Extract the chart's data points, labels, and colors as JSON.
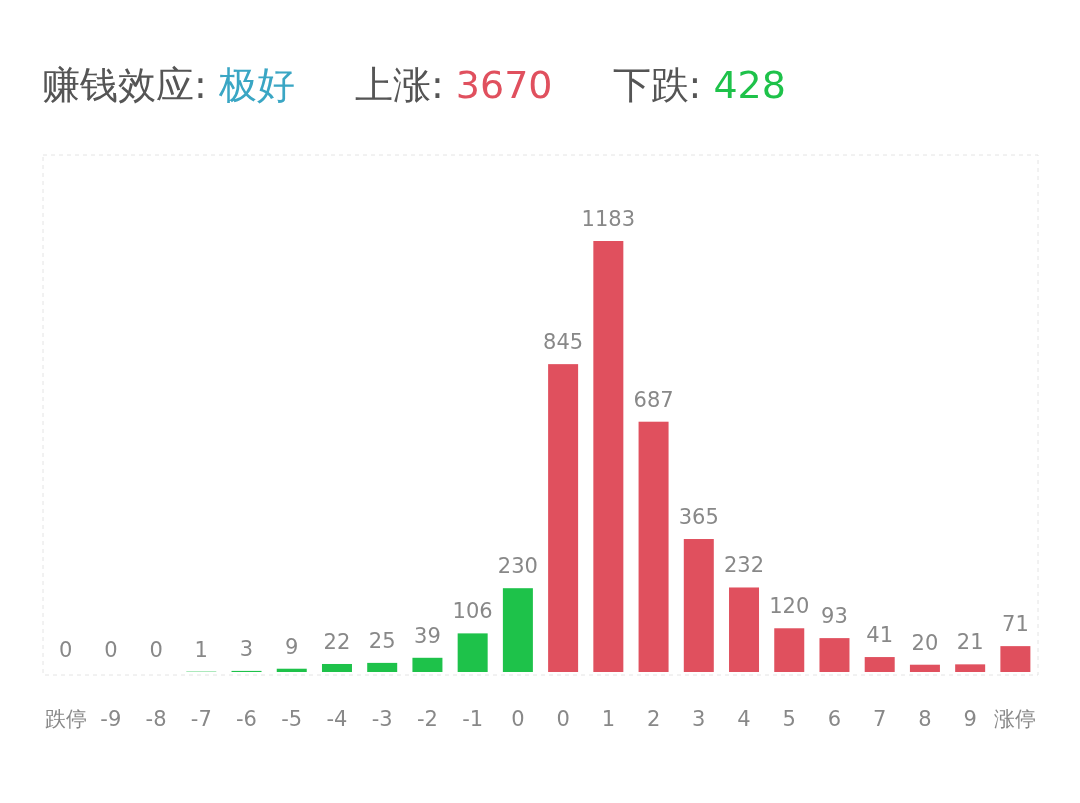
{
  "chart_data": {
    "type": "bar",
    "title": "赚钱效应: 极好",
    "annotations": [
      "上涨: 3670",
      "下跌: 428"
    ],
    "categories": [
      "跌停",
      "-9",
      "-8",
      "-7",
      "-6",
      "-5",
      "-4",
      "-3",
      "-2",
      "-1",
      "0",
      "0",
      "1",
      "2",
      "3",
      "4",
      "5",
      "6",
      "7",
      "8",
      "9",
      "涨停"
    ],
    "values": [
      0,
      0,
      0,
      1,
      3,
      9,
      22,
      25,
      39,
      106,
      230,
      845,
      1183,
      687,
      365,
      232,
      120,
      93,
      41,
      20,
      21,
      71
    ],
    "colors": [
      "#1ec24a",
      "#1ec24a",
      "#1ec24a",
      "#1ec24a",
      "#1ec24a",
      "#1ec24a",
      "#1ec24a",
      "#1ec24a",
      "#1ec24a",
      "#1ec24a",
      "#1ec24a",
      "#e0505e",
      "#e0505e",
      "#e0505e",
      "#e0505e",
      "#e0505e",
      "#e0505e",
      "#e0505e",
      "#e0505e",
      "#e0505e",
      "#e0505e",
      "#e0505e"
    ],
    "data_labels": true
  }
}
